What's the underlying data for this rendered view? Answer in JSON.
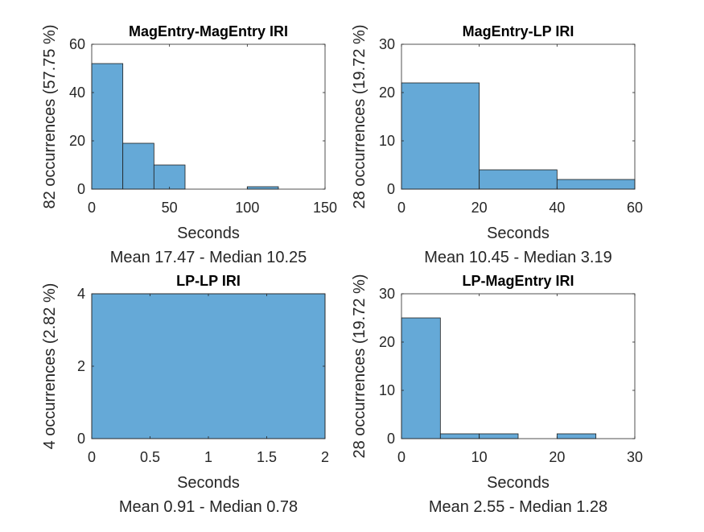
{
  "colors": {
    "bar_fill": "#65a9d7",
    "bar_stroke": "#1f1f1f",
    "axis": "#262626",
    "text": "#262626"
  },
  "chart_data": [
    {
      "type": "bar",
      "title": "MagEntry-MagEntry IRI",
      "xlabel": "Seconds",
      "ylabel": "82 occurrences (57.75 %)",
      "caption": "Mean 17.47 - Median 10.25",
      "xlim": [
        0,
        150
      ],
      "ylim": [
        0,
        60
      ],
      "xticks": [
        0,
        50,
        100,
        150
      ],
      "yticks": [
        0,
        20,
        40,
        60
      ],
      "bins": [
        {
          "x0": 0,
          "x1": 20,
          "count": 52
        },
        {
          "x0": 20,
          "x1": 40,
          "count": 19
        },
        {
          "x0": 40,
          "x1": 60,
          "count": 10
        },
        {
          "x0": 60,
          "x1": 80,
          "count": 0
        },
        {
          "x0": 80,
          "x1": 100,
          "count": 0
        },
        {
          "x0": 100,
          "x1": 120,
          "count": 1
        }
      ]
    },
    {
      "type": "bar",
      "title": "MagEntry-LP IRI",
      "xlabel": "Seconds",
      "ylabel": "28 occurrences (19.72 %)",
      "caption": "Mean 10.45 - Median 3.19",
      "xlim": [
        0,
        60
      ],
      "ylim": [
        0,
        30
      ],
      "xticks": [
        0,
        20,
        40,
        60
      ],
      "yticks": [
        0,
        10,
        20,
        30
      ],
      "bins": [
        {
          "x0": 0,
          "x1": 20,
          "count": 22
        },
        {
          "x0": 20,
          "x1": 40,
          "count": 4
        },
        {
          "x0": 40,
          "x1": 60,
          "count": 2
        }
      ]
    },
    {
      "type": "bar",
      "title": "LP-LP IRI",
      "xlabel": "Seconds",
      "ylabel": "4 occurrences (2.82 %)",
      "caption": "Mean 0.91 - Median 0.78",
      "xlim": [
        0,
        2
      ],
      "ylim": [
        0,
        4
      ],
      "xticks": [
        0,
        0.5,
        1,
        1.5,
        2
      ],
      "yticks": [
        0,
        2,
        4
      ],
      "bins": [
        {
          "x0": 0,
          "x1": 2,
          "count": 4
        }
      ]
    },
    {
      "type": "bar",
      "title": "LP-MagEntry IRI",
      "xlabel": "Seconds",
      "ylabel": "28 occurrences (19.72 %)",
      "caption": "Mean 2.55 - Median 1.28",
      "xlim": [
        0,
        30
      ],
      "ylim": [
        0,
        30
      ],
      "xticks": [
        0,
        10,
        20,
        30
      ],
      "yticks": [
        0,
        10,
        20,
        30
      ],
      "bins": [
        {
          "x0": 0,
          "x1": 5,
          "count": 25
        },
        {
          "x0": 5,
          "x1": 10,
          "count": 1
        },
        {
          "x0": 10,
          "x1": 15,
          "count": 1
        },
        {
          "x0": 15,
          "x1": 20,
          "count": 0
        },
        {
          "x0": 20,
          "x1": 25,
          "count": 1
        }
      ]
    }
  ]
}
